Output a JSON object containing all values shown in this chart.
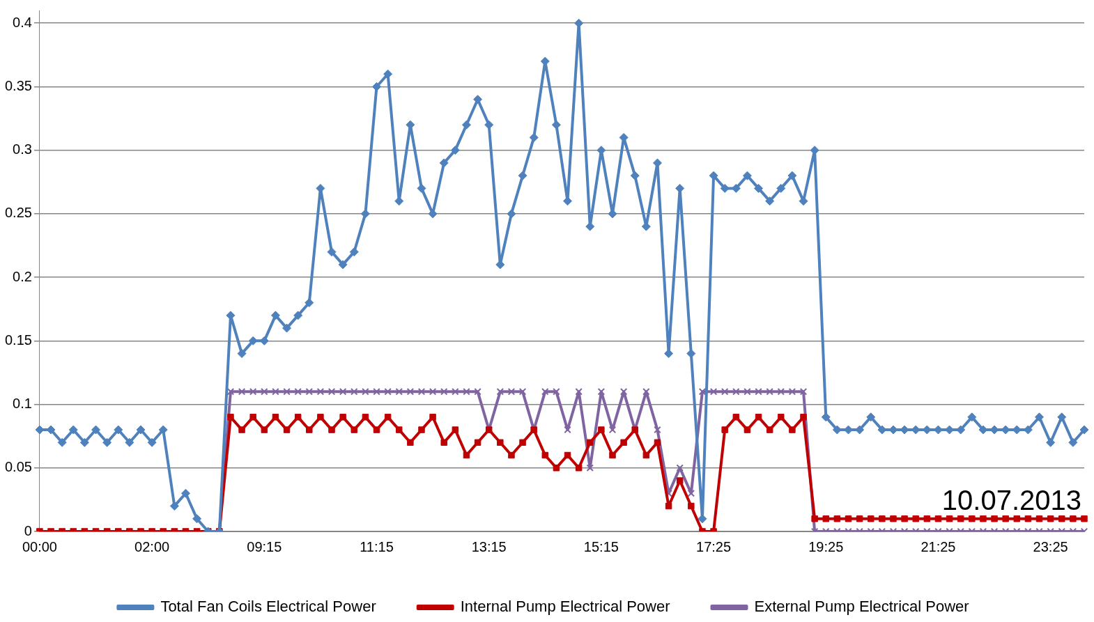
{
  "chart_data": {
    "type": "line",
    "categories": [
      "00:00",
      null,
      null,
      null,
      null,
      null,
      null,
      null,
      null,
      null,
      "02:00",
      null,
      null,
      null,
      null,
      null,
      null,
      null,
      null,
      null,
      "09:15",
      null,
      null,
      null,
      null,
      null,
      null,
      null,
      null,
      null,
      "11:15",
      null,
      null,
      null,
      null,
      null,
      null,
      null,
      null,
      null,
      "13:15",
      null,
      null,
      null,
      null,
      null,
      null,
      null,
      null,
      null,
      "15:15",
      null,
      null,
      null,
      null,
      null,
      null,
      null,
      null,
      null,
      "17:25",
      null,
      null,
      null,
      null,
      null,
      null,
      null,
      null,
      null,
      "19:25",
      null,
      null,
      null,
      null,
      null,
      null,
      null,
      null,
      null,
      "21:25",
      null,
      null,
      null,
      null,
      null,
      null,
      null,
      null,
      null,
      "23:25",
      null,
      null,
      null
    ],
    "series": [
      {
        "name": "Total Fan Coils Electrical Power",
        "color": "#4f81bd",
        "marker": "diamond",
        "values": [
          0.08,
          0.08,
          0.07,
          0.08,
          0.07,
          0.08,
          0.07,
          0.08,
          0.07,
          0.08,
          0.07,
          0.08,
          0.02,
          0.03,
          0.01,
          0,
          0,
          0.17,
          0.14,
          0.15,
          0.15,
          0.17,
          0.16,
          0.17,
          0.18,
          0.27,
          0.22,
          0.21,
          0.22,
          0.25,
          0.35,
          0.36,
          0.26,
          0.32,
          0.27,
          0.25,
          0.29,
          0.3,
          0.32,
          0.34,
          0.32,
          0.21,
          0.25,
          0.28,
          0.31,
          0.37,
          0.32,
          0.26,
          0.4,
          0.24,
          0.3,
          0.25,
          0.31,
          0.28,
          0.24,
          0.29,
          0.14,
          0.27,
          0.14,
          0.01,
          0.28,
          0.27,
          0.27,
          0.28,
          0.27,
          0.26,
          0.27,
          0.28,
          0.26,
          0.3,
          0.09,
          0.08,
          0.08,
          0.08,
          0.09,
          0.08,
          0.08,
          0.08,
          0.08,
          0.08,
          0.08,
          0.08,
          0.08,
          0.09,
          0.08,
          0.08,
          0.08,
          0.08,
          0.08,
          0.09,
          0.07,
          0.09,
          0.07,
          0.08
        ]
      },
      {
        "name": "Internal Pump Electrical Power",
        "color": "#c00000",
        "marker": "square",
        "values": [
          0,
          0,
          0,
          0,
          0,
          0,
          0,
          0,
          0,
          0,
          0,
          0,
          0,
          0,
          0,
          0,
          0,
          0.09,
          0.08,
          0.09,
          0.08,
          0.09,
          0.08,
          0.09,
          0.08,
          0.09,
          0.08,
          0.09,
          0.08,
          0.09,
          0.08,
          0.09,
          0.08,
          0.07,
          0.08,
          0.09,
          0.07,
          0.08,
          0.06,
          0.07,
          0.08,
          0.07,
          0.06,
          0.07,
          0.08,
          0.06,
          0.05,
          0.06,
          0.05,
          0.07,
          0.08,
          0.06,
          0.07,
          0.08,
          0.06,
          0.07,
          0.02,
          0.04,
          0.02,
          0,
          0,
          0.08,
          0.09,
          0.08,
          0.09,
          0.08,
          0.09,
          0.08,
          0.09,
          0.01,
          0.01,
          0.01,
          0.01,
          0.01,
          0.01,
          0.01,
          0.01,
          0.01,
          0.01,
          0.01,
          0.01,
          0.01,
          0.01,
          0.01,
          0.01,
          0.01,
          0.01,
          0.01,
          0.01,
          0.01,
          0.01,
          0.01,
          0.01,
          0.01
        ]
      },
      {
        "name": "External Pump Electrical Power",
        "color": "#8064a2",
        "marker": "cross",
        "values": [
          0,
          0,
          0,
          0,
          0,
          0,
          0,
          0,
          0,
          0,
          0,
          0,
          0,
          0,
          0,
          0,
          0,
          0.11,
          0.11,
          0.11,
          0.11,
          0.11,
          0.11,
          0.11,
          0.11,
          0.11,
          0.11,
          0.11,
          0.11,
          0.11,
          0.11,
          0.11,
          0.11,
          0.11,
          0.11,
          0.11,
          0.11,
          0.11,
          0.11,
          0.11,
          0.08,
          0.11,
          0.11,
          0.11,
          0.08,
          0.11,
          0.11,
          0.08,
          0.11,
          0.05,
          0.11,
          0.08,
          0.11,
          0.08,
          0.11,
          0.08,
          0.03,
          0.05,
          0.03,
          0.11,
          0.11,
          0.11,
          0.11,
          0.11,
          0.11,
          0.11,
          0.11,
          0.11,
          0.11,
          0,
          0,
          0,
          0,
          0,
          0,
          0,
          0,
          0,
          0,
          0,
          0,
          0,
          0,
          0,
          0,
          0,
          0,
          0,
          0,
          0,
          0,
          0,
          0,
          0
        ]
      }
    ],
    "ylim": [
      0,
      0.41
    ],
    "yticks": [
      0,
      0.05,
      0.1,
      0.15,
      0.2,
      0.25,
      0.3,
      0.35,
      0.4
    ],
    "grid": "y",
    "legend": "bottom",
    "line_style": "solid",
    "annotations": [
      "10.07.2013"
    ]
  }
}
